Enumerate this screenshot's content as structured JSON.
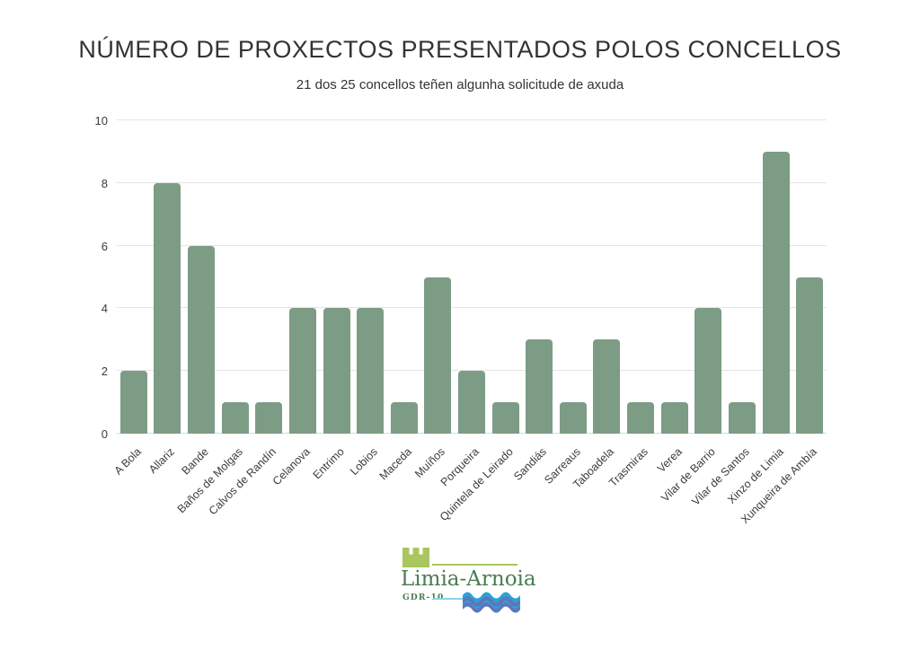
{
  "title": "NÚMERO DE PROXECTOS PRESENTADOS POLOS CONCELLOS",
  "subtitle": "21 dos 25 concellos teñen algunha solicitude de axuda",
  "chart_data": {
    "type": "bar",
    "title": "NÚMERO DE PROXECTOS PRESENTADOS POLOS CONCELLOS",
    "subtitle": "21 dos 25 concellos teñen algunha solicitude de axuda",
    "categories": [
      "A Bola",
      "Allariz",
      "Bande",
      "Baños de Molgas",
      "Calvos de Randín",
      "Celanova",
      "Entrimo",
      "Lobios",
      "Maceda",
      "Muíños",
      "Porqueira",
      "Quintela de Leirado",
      "Sandiás",
      "Sarreaus",
      "Taboadela",
      "Trasmiras",
      "Verea",
      "Vilar de Barrio",
      "Vilar de Santos",
      "Xinzo de Limia",
      "Xunqueira de Ambía"
    ],
    "values": [
      2,
      8,
      6,
      1,
      1,
      4,
      4,
      4,
      1,
      5,
      2,
      1,
      3,
      1,
      3,
      1,
      1,
      4,
      1,
      9,
      5
    ],
    "xlabel": "",
    "ylabel": "",
    "ylim": [
      0,
      10
    ],
    "yticks": [
      0,
      2,
      4,
      6,
      8,
      10
    ],
    "grid": true,
    "legend": false,
    "bar_color": "#7d9c85"
  },
  "logo": {
    "name": "Limia-Arnoia",
    "sub": "GDR-10",
    "colors": {
      "castle_green": "#aac75f",
      "text_green": "#4a7b52",
      "wave_blue": "#2ba1d8",
      "wave_stripe": "#6274b8",
      "light_blue": "#8ad2ee"
    }
  }
}
